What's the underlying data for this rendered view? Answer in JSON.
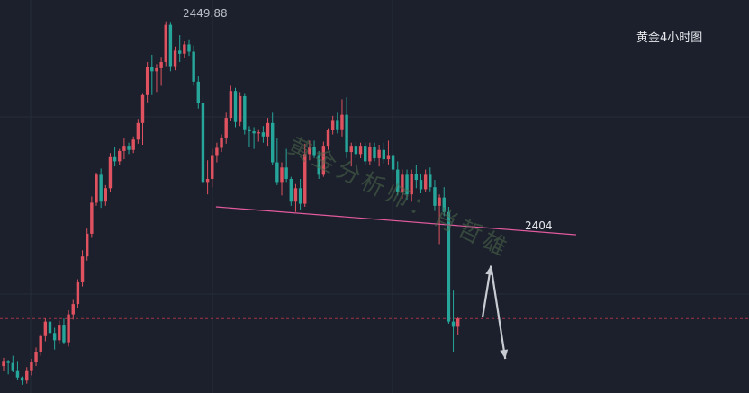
{
  "chart_data": {
    "type": "candlestick",
    "title": "黄金4小时图",
    "price_range": [
      2378,
      2454
    ],
    "up_color": "#e05260",
    "down_color": "#26a69a",
    "background": "#1b202c",
    "grid": true,
    "high_label": "2449.88",
    "level_label": "2404",
    "watermark": "黄金分析师：肖哲雄",
    "candles": [
      [
        2383.2,
        2384.8,
        2382.2,
        2384.2
      ],
      [
        2384.2,
        2384.4,
        2381.6,
        2383.8
      ],
      [
        2383.8,
        2385.2,
        2382.0,
        2382.4
      ],
      [
        2382.4,
        2384.2,
        2380.6,
        2381.0
      ],
      [
        2381.0,
        2381.2,
        2379.6,
        2380.4
      ],
      [
        2380.4,
        2383.0,
        2379.8,
        2382.4
      ],
      [
        2382.4,
        2384.6,
        2381.4,
        2384.0
      ],
      [
        2384.0,
        2386.8,
        2383.2,
        2386.0
      ],
      [
        2386.0,
        2389.4,
        2385.2,
        2389.0
      ],
      [
        2389.0,
        2392.4,
        2388.0,
        2391.8
      ],
      [
        2391.8,
        2393.0,
        2388.8,
        2389.6
      ],
      [
        2389.6,
        2390.6,
        2386.4,
        2388.2
      ],
      [
        2388.2,
        2392.0,
        2387.6,
        2391.2
      ],
      [
        2391.2,
        2392.4,
        2387.4,
        2387.8
      ],
      [
        2387.8,
        2394.0,
        2387.0,
        2393.2
      ],
      [
        2393.2,
        2396.0,
        2392.2,
        2395.2
      ],
      [
        2395.2,
        2400.0,
        2394.4,
        2399.4
      ],
      [
        2399.4,
        2405.6,
        2398.6,
        2404.4
      ],
      [
        2404.4,
        2409.8,
        2403.6,
        2408.8
      ],
      [
        2408.8,
        2416.0,
        2408.0,
        2414.8
      ],
      [
        2414.8,
        2420.6,
        2414.2,
        2420.2
      ],
      [
        2420.2,
        2421.4,
        2413.8,
        2415.0
      ],
      [
        2415.0,
        2418.2,
        2414.2,
        2417.6
      ],
      [
        2417.6,
        2424.4,
        2416.8,
        2423.6
      ],
      [
        2423.6,
        2425.6,
        2421.8,
        2422.8
      ],
      [
        2422.8,
        2425.2,
        2422.0,
        2424.8
      ],
      [
        2424.8,
        2427.2,
        2423.2,
        2425.8
      ],
      [
        2425.8,
        2426.4,
        2424.2,
        2425.0
      ],
      [
        2425.0,
        2427.6,
        2424.4,
        2427.0
      ],
      [
        2427.0,
        2431.0,
        2426.2,
        2430.2
      ],
      [
        2430.2,
        2436.0,
        2426.0,
        2435.6
      ],
      [
        2435.6,
        2442.0,
        2434.2,
        2441.0
      ],
      [
        2441.0,
        2443.4,
        2435.6,
        2440.2
      ],
      [
        2440.2,
        2441.6,
        2436.2,
        2440.8
      ],
      [
        2440.8,
        2443.0,
        2437.4,
        2442.0
      ],
      [
        2442.0,
        2449.88,
        2441.2,
        2449.2
      ],
      [
        2449.2,
        2449.6,
        2440.2,
        2441.2
      ],
      [
        2441.2,
        2445.0,
        2440.4,
        2444.2
      ],
      [
        2444.2,
        2447.2,
        2442.0,
        2443.6
      ],
      [
        2443.6,
        2446.0,
        2442.8,
        2445.4
      ],
      [
        2445.4,
        2446.4,
        2443.2,
        2444.0
      ],
      [
        2444.0,
        2445.2,
        2437.4,
        2438.2
      ],
      [
        2438.2,
        2439.2,
        2433.0,
        2434.0
      ],
      [
        2434.0,
        2435.4,
        2418.0,
        2418.8
      ],
      [
        2418.8,
        2423.0,
        2416.4,
        2419.4
      ],
      [
        2419.4,
        2425.2,
        2417.8,
        2424.0
      ],
      [
        2424.0,
        2426.4,
        2422.6,
        2425.4
      ],
      [
        2425.4,
        2428.0,
        2424.6,
        2427.4
      ],
      [
        2427.4,
        2432.2,
        2426.2,
        2431.2
      ],
      [
        2431.2,
        2437.4,
        2430.6,
        2436.4
      ],
      [
        2436.4,
        2437.0,
        2429.4,
        2430.4
      ],
      [
        2430.4,
        2436.2,
        2429.6,
        2435.4
      ],
      [
        2435.4,
        2436.0,
        2428.0,
        2429.0
      ],
      [
        2429.0,
        2429.6,
        2425.6,
        2428.6
      ],
      [
        2428.6,
        2429.4,
        2425.2,
        2428.2
      ],
      [
        2428.2,
        2429.0,
        2426.6,
        2428.4
      ],
      [
        2428.4,
        2429.6,
        2426.4,
        2427.6
      ],
      [
        2427.6,
        2431.2,
        2425.8,
        2430.2
      ],
      [
        2430.2,
        2432.2,
        2422.0,
        2422.6
      ],
      [
        2422.6,
        2427.2,
        2418.2,
        2418.8
      ],
      [
        2418.8,
        2422.6,
        2416.2,
        2421.6
      ],
      [
        2421.6,
        2425.2,
        2418.8,
        2419.4
      ],
      [
        2419.4,
        2419.8,
        2414.2,
        2415.0
      ],
      [
        2415.0,
        2418.4,
        2413.0,
        2417.6
      ],
      [
        2417.6,
        2419.4,
        2413.4,
        2414.6
      ],
      [
        2414.6,
        2426.2,
        2414.0,
        2424.2
      ],
      [
        2424.2,
        2426.8,
        2423.0,
        2425.6
      ],
      [
        2425.6,
        2426.8,
        2423.4,
        2424.0
      ],
      [
        2424.0,
        2424.8,
        2419.4,
        2420.2
      ],
      [
        2420.2,
        2426.6,
        2419.8,
        2425.8
      ],
      [
        2425.8,
        2429.2,
        2425.0,
        2428.8
      ],
      [
        2428.8,
        2431.6,
        2428.0,
        2430.8
      ],
      [
        2430.8,
        2432.2,
        2428.2,
        2429.0
      ],
      [
        2429.0,
        2434.8,
        2427.6,
        2431.8
      ],
      [
        2431.8,
        2435.2,
        2423.4,
        2424.6
      ],
      [
        2424.6,
        2426.4,
        2421.8,
        2425.8
      ],
      [
        2425.8,
        2426.6,
        2423.4,
        2424.2
      ],
      [
        2424.2,
        2426.4,
        2423.4,
        2425.8
      ],
      [
        2425.8,
        2426.4,
        2422.2,
        2422.8
      ],
      [
        2422.8,
        2426.4,
        2422.0,
        2425.6
      ],
      [
        2425.6,
        2426.4,
        2422.8,
        2423.4
      ],
      [
        2423.4,
        2426.0,
        2421.8,
        2425.0
      ],
      [
        2425.0,
        2426.4,
        2422.4,
        2423.2
      ],
      [
        2423.2,
        2426.8,
        2422.2,
        2424.0
      ],
      [
        2424.0,
        2424.2,
        2420.6,
        2421.2
      ],
      [
        2421.2,
        2422.8,
        2416.2,
        2416.8
      ],
      [
        2416.8,
        2421.2,
        2415.6,
        2420.2
      ],
      [
        2420.2,
        2421.2,
        2415.4,
        2416.4
      ],
      [
        2416.4,
        2421.2,
        2415.0,
        2420.4
      ],
      [
        2420.4,
        2422.0,
        2417.6,
        2419.2
      ],
      [
        2419.2,
        2420.4,
        2416.6,
        2417.4
      ],
      [
        2417.4,
        2421.2,
        2416.8,
        2420.2
      ],
      [
        2420.2,
        2421.6,
        2417.0,
        2417.8
      ],
      [
        2417.8,
        2419.2,
        2413.2,
        2414.2
      ],
      [
        2414.2,
        2416.4,
        2406.8,
        2415.8
      ],
      [
        2415.8,
        2417.8,
        2412.2,
        2413.0
      ],
      [
        2413.0,
        2414.0,
        2391.4,
        2391.8
      ],
      [
        2391.8,
        2397.8,
        2386.0,
        2390.8
      ],
      [
        2390.8,
        2392.6,
        2389.2,
        2392.4
      ]
    ],
    "annotations": [
      {
        "type": "trendline",
        "from": [
          45.8,
          2414.0
        ],
        "to": [
          123.5,
          2408.6
        ],
        "color": "#e35a9e"
      },
      {
        "type": "hline",
        "value": 2392.4,
        "style": "dashed",
        "color": "#a43346"
      },
      {
        "type": "arrow",
        "from": [
          103.3,
          2392.6
        ],
        "to": [
          105.1,
          2402.6
        ],
        "color": "#c8ccd2"
      },
      {
        "type": "arrow",
        "from": [
          105.1,
          2402.6
        ],
        "to": [
          108.2,
          2384.6
        ],
        "color": "#c8ccd2"
      }
    ]
  }
}
